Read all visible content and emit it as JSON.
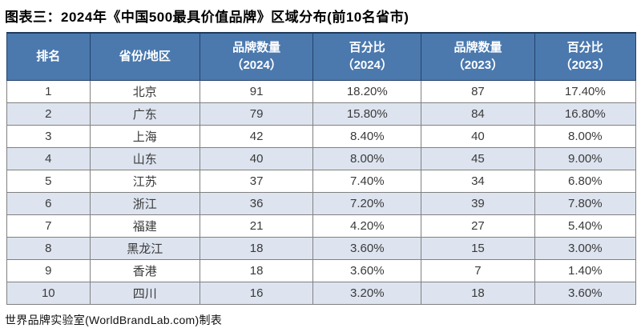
{
  "title": "图表三：2024年《中国500最具价值品牌》区域分布(前10名省市)",
  "footer": "世界品牌实验室(WorldBrandLab.com)制表",
  "colors": {
    "header_bg": "#4b79ae",
    "header_text": "#ffffff",
    "header_border": "#24426b",
    "stripe_bg": "#dde4ef",
    "row_bg": "#ffffff",
    "cell_border": "#808080",
    "outer_border": "#595959",
    "cell_text": "#3a3a3a"
  },
  "table": {
    "headers": [
      {
        "key": "rank",
        "label": "排名"
      },
      {
        "key": "region",
        "label": "省份/地区"
      },
      {
        "key": "brands-2024",
        "label": "品牌数量\n（2024）"
      },
      {
        "key": "pct-2024",
        "label": "百分比\n（2024）"
      },
      {
        "key": "brands-2023",
        "label": "品牌数量\n（2023）"
      },
      {
        "key": "pct-2023",
        "label": "百分比\n（2023）"
      }
    ],
    "rows": [
      [
        "1",
        "北京",
        "91",
        "18.20%",
        "87",
        "17.40%"
      ],
      [
        "2",
        "广东",
        "79",
        "15.80%",
        "84",
        "16.80%"
      ],
      [
        "3",
        "上海",
        "42",
        "8.40%",
        "40",
        "8.00%"
      ],
      [
        "4",
        "山东",
        "40",
        "8.00%",
        "45",
        "9.00%"
      ],
      [
        "5",
        "江苏",
        "37",
        "7.40%",
        "34",
        "6.80%"
      ],
      [
        "6",
        "浙江",
        "36",
        "7.20%",
        "39",
        "7.80%"
      ],
      [
        "7",
        "福建",
        "21",
        "4.20%",
        "27",
        "5.40%"
      ],
      [
        "8",
        "黑龙江",
        "18",
        "3.60%",
        "15",
        "3.00%"
      ],
      [
        "9",
        "香港",
        "18",
        "3.60%",
        "7",
        "1.40%"
      ],
      [
        "10",
        "四川",
        "16",
        "3.20%",
        "18",
        "3.60%"
      ]
    ]
  },
  "chart_data": {
    "type": "table",
    "title": "图表三：2024年《中国500最具价值品牌》区域分布(前10名省市)",
    "source": "世界品牌实验室(WorldBrandLab.com)制表",
    "columns": [
      "排名",
      "省份/地区",
      "品牌数量（2024）",
      "百分比（2024）",
      "品牌数量（2023）",
      "百分比（2023）"
    ],
    "rows": [
      [
        1,
        "北京",
        91,
        "18.20%",
        87,
        "17.40%"
      ],
      [
        2,
        "广东",
        79,
        "15.80%",
        84,
        "16.80%"
      ],
      [
        3,
        "上海",
        42,
        "8.40%",
        40,
        "8.00%"
      ],
      [
        4,
        "山东",
        40,
        "8.00%",
        45,
        "9.00%"
      ],
      [
        5,
        "江苏",
        37,
        "7.40%",
        34,
        "6.80%"
      ],
      [
        6,
        "浙江",
        36,
        "7.20%",
        39,
        "7.80%"
      ],
      [
        7,
        "福建",
        21,
        "4.20%",
        27,
        "5.40%"
      ],
      [
        8,
        "黑龙江",
        18,
        "3.60%",
        15,
        "3.00%"
      ],
      [
        9,
        "香港",
        18,
        "3.60%",
        7,
        "1.40%"
      ],
      [
        10,
        "四川",
        16,
        "3.20%",
        18,
        "3.60%"
      ]
    ]
  }
}
